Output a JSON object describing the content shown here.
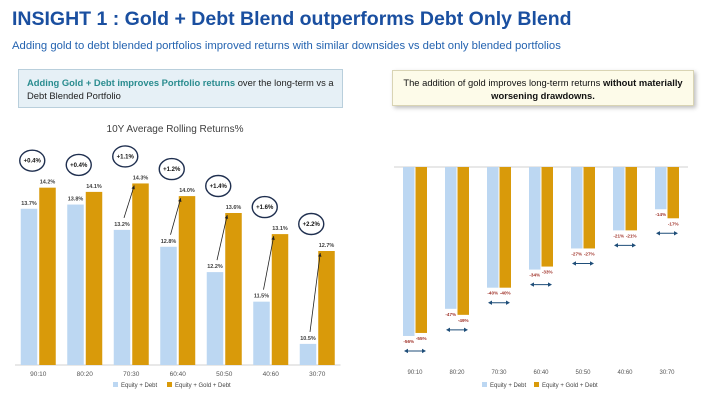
{
  "header": {
    "title": "INSIGHT 1 : Gold + Debt Blend outperforms Debt Only Blend",
    "subtitle": "Adding gold to debt blended portfolios improved returns with similar downsides vs debt only blended portfolios"
  },
  "left_callout": {
    "highlight": "Adding Gold + Debt improves Portfolio returns",
    "rest": " over the long-term vs a Debt Blended Portfolio"
  },
  "right_callout": {
    "text": "The addition of gold improves long-term returns ",
    "bold": "without materially worsening drawdowns."
  },
  "colors": {
    "equity_debt": "#bcd7f2",
    "equity_gold_debt": "#d99a0a",
    "title_blue": "#1a4fa0",
    "circle_border": "#1f2f4f",
    "drawdown_label": "#a0332a",
    "arrow": "#1f4e79"
  },
  "chart_data": [
    {
      "type": "bar",
      "title": "10Y Average Rolling Returns%",
      "categories": [
        "90:10",
        "80:20",
        "70:30",
        "60:40",
        "50:50",
        "40:60",
        "30:70"
      ],
      "series": [
        {
          "name": "Equity + Debt",
          "values": [
            13.7,
            13.8,
            13.2,
            12.8,
            12.2,
            11.5,
            10.5
          ],
          "labels": [
            "13.7%",
            "13.8%",
            "13.2%",
            "12.8%",
            "12.2%",
            "11.5%",
            "10.5%"
          ]
        },
        {
          "name": "Equity + Gold + Debt",
          "values": [
            14.2,
            14.1,
            14.3,
            14.0,
            13.6,
            13.1,
            12.7
          ],
          "labels": [
            "14.2%",
            "14.1%",
            "14.3%",
            "14.0%",
            "13.6%",
            "13.1%",
            "12.7%"
          ]
        }
      ],
      "annotations": [
        "+0.4%",
        "+0.4%",
        "+1.1%",
        "+1.2%",
        "+1.4%",
        "+1.6%",
        "+2.2%"
      ],
      "ylim": [
        10,
        14.5
      ],
      "legend": "bottom"
    },
    {
      "type": "bar",
      "title": "",
      "categories": [
        "90:10",
        "80:20",
        "70:30",
        "60:40",
        "50:50",
        "40:60",
        "30:70"
      ],
      "series": [
        {
          "name": "Equity + Debt",
          "values": [
            -56,
            -47,
            -40,
            -34,
            -27,
            -21,
            -14
          ],
          "labels": [
            "-56%",
            "-47%",
            "-40%",
            "-34%",
            "-27%",
            "-21%",
            "-14%"
          ]
        },
        {
          "name": "Equity + Gold + Debt",
          "values": [
            -55,
            -49,
            -40,
            -33,
            -27,
            -21,
            -17
          ],
          "labels": [
            "-55%",
            "-49%",
            "-40%",
            "-33%",
            "-27%",
            "-21%",
            "-17%"
          ]
        }
      ],
      "ylim": [
        -58,
        0
      ],
      "legend": "bottom"
    }
  ]
}
